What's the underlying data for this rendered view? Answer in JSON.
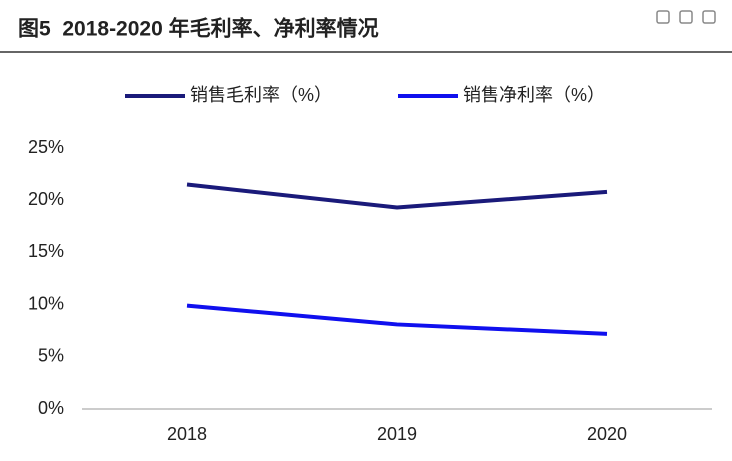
{
  "chart_data": {
    "type": "line",
    "title": "图5  2018-2020 年毛利率、净利率情况",
    "categories": [
      "2018",
      "2019",
      "2020"
    ],
    "series": [
      {
        "name": "销售毛利率（%）",
        "color": "#1a1a7a",
        "values": [
          21.5,
          19.3,
          20.8
        ]
      },
      {
        "name": "销售净利率（%）",
        "color": "#1010ee",
        "values": [
          9.9,
          8.1,
          7.2
        ]
      }
    ],
    "ylim": [
      0,
      25
    ],
    "yticks": [
      {
        "value": 0,
        "label": "0%"
      },
      {
        "value": 5,
        "label": "5%"
      },
      {
        "value": 10,
        "label": "10%"
      },
      {
        "value": 15,
        "label": "15%"
      },
      {
        "value": 20,
        "label": "20%"
      },
      {
        "value": 25,
        "label": "25%"
      }
    ],
    "grid": false,
    "legend": "top"
  }
}
